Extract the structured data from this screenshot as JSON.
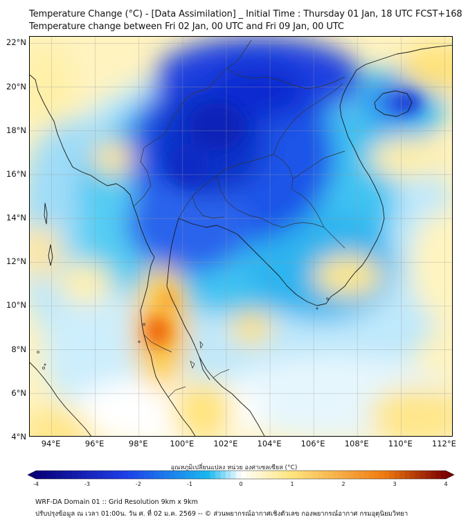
{
  "title": {
    "line1": "Temperature Change (°C) - [Data Assimilation] _ Initial Time : Thursday 01 Jan, 18 UTC FCST+168",
    "line2": "Temperature change between Fri 02 Jan, 00 UTC and Fri 09 Jan, 00 UTC"
  },
  "map": {
    "lat_labels": [
      "22°N",
      "20°N",
      "18°N",
      "16°N",
      "14°N",
      "12°N",
      "10°N",
      "8°N",
      "6°N",
      "4°N"
    ],
    "lon_labels": [
      "94°E",
      "96°E",
      "98°E",
      "100°E",
      "102°E",
      "104°E",
      "106°E",
      "108°E",
      "110°E",
      "112°E"
    ],
    "lat_range": [
      4,
      22.3
    ],
    "lon_range": [
      93.0,
      112.4
    ],
    "gridlines": true
  },
  "colorbar": {
    "label": "อุณหภูมิเปลี่ยนแปลง หน่วย องศาเซลเซียส (°C)",
    "ticks": [
      "-4",
      "-3",
      "-2",
      "-1",
      "0",
      "1",
      "2",
      "3",
      "4"
    ],
    "min": -4,
    "max": 4,
    "colors": {
      "min": "#08007a",
      "cold": "#1f3fe8",
      "cool": "#19b8f0",
      "neutral": "#ffffff",
      "warm": "#ffe680",
      "hot": "#f07a10",
      "max": "#7a0000"
    }
  },
  "footer": {
    "line1": "WRF-DA Domain 01 :: Grid Resolution 9km x 9km",
    "line2": "ปรับปรุงข้อมูล ณ เวลา 01:00น. วัน ศ. ที่ 02 ม.ค. 2569 -- © ส่วนพยากรณ์อากาศเชิงตัวเลข กองพยากรณ์อากาศ กรมอุตุนิยมวิทยา"
  }
}
